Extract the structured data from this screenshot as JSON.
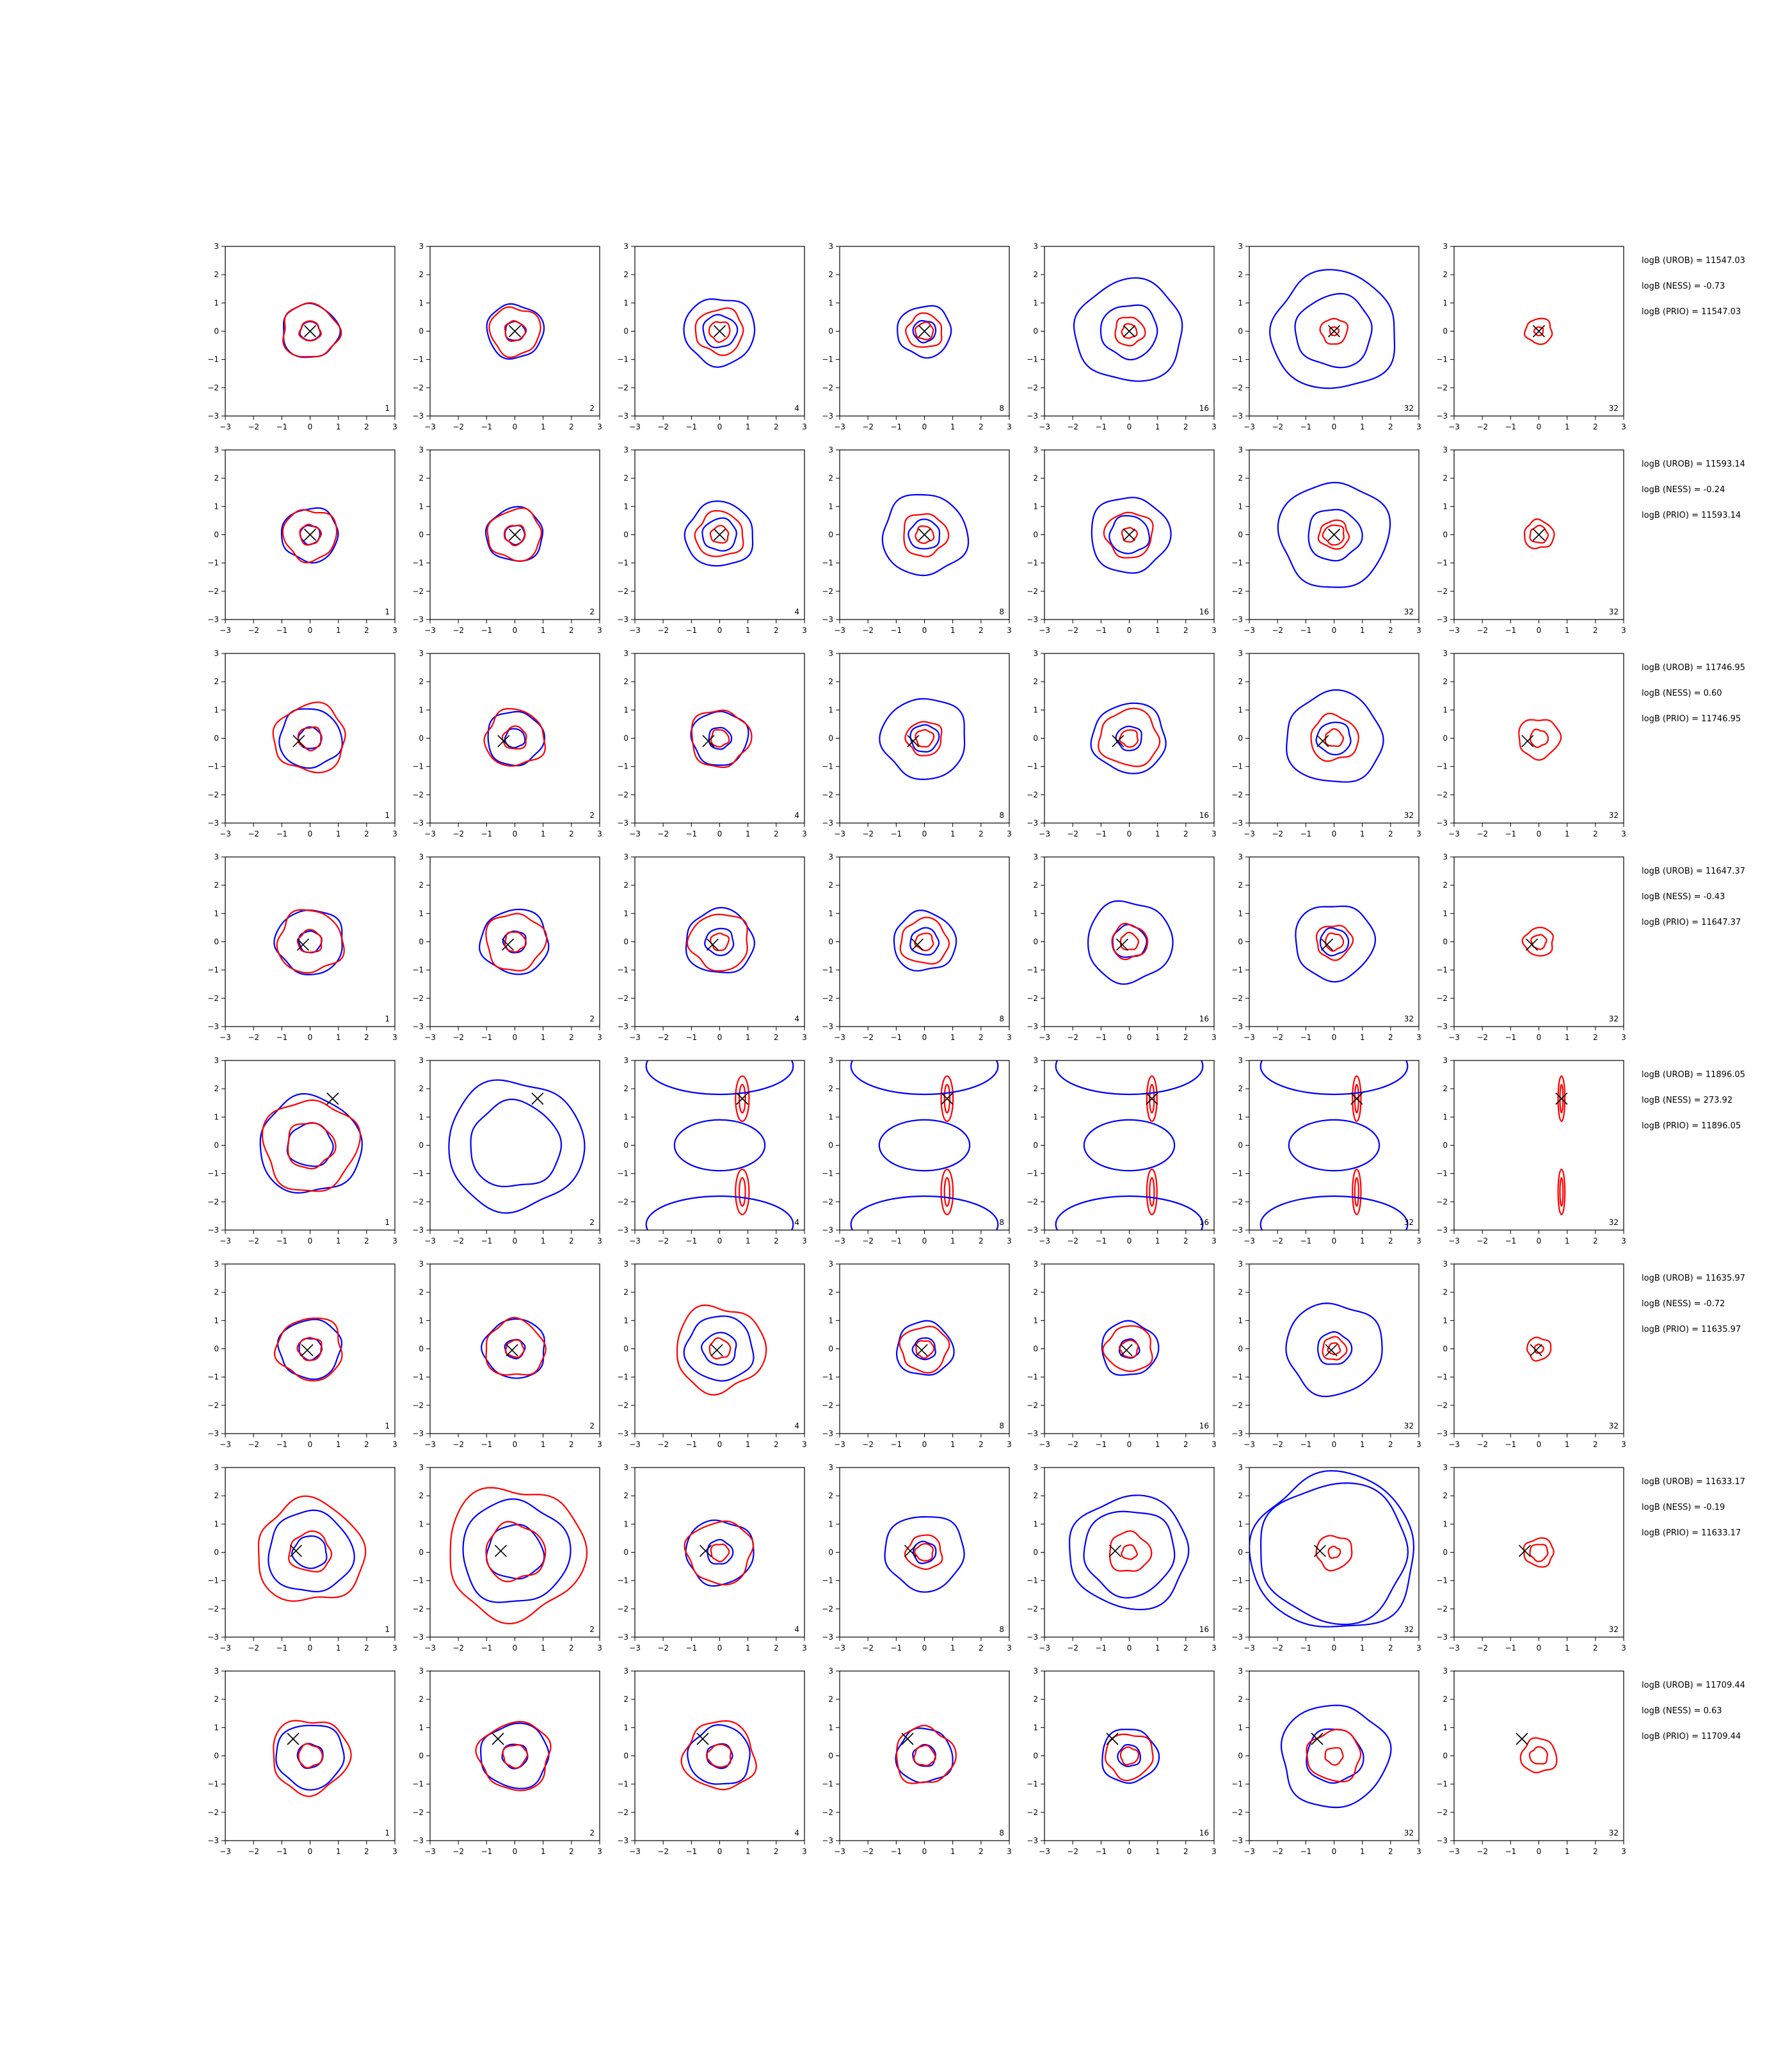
{
  "chart_data": {
    "type": "contour-grid",
    "rows": 8,
    "columns": 7,
    "panel_labels": [
      "1",
      "2",
      "4",
      "8",
      "16",
      "32",
      "32"
    ],
    "xlim": [
      -3,
      3
    ],
    "ylim": [
      -3,
      3
    ],
    "xticks": [
      "−3",
      "−2",
      "−1",
      "0",
      "1",
      "2",
      "3"
    ],
    "yticks": [
      "−3",
      "−2",
      "−1",
      "0",
      "1",
      "2",
      "3"
    ],
    "series_colors": {
      "blue": "#0000ff",
      "red": "#ff0000",
      "marker": "#000000"
    },
    "rows_data": [
      {
        "marker": [
          0,
          0
        ],
        "stats": [
          "logB (UROB) = 11547.03",
          "logB (NESS) = -0.73",
          "logB (PRIO) = 11547.03"
        ],
        "blue_r": [
          [
            0.35,
            1.0
          ],
          [
            0.35,
            1.0
          ],
          [
            0.6,
            1.25
          ],
          [
            0.4,
            0.95
          ],
          [
            1.0,
            1.9
          ],
          [
            1.35,
            2.2
          ],
          []
        ],
        "red_r": [
          [
            0.35,
            0.95
          ],
          [
            0.35,
            0.85
          ],
          [
            0.35,
            0.8
          ],
          [
            0.3,
            0.6
          ],
          [
            0.25,
            0.5
          ],
          [
            0.15,
            0.45
          ],
          [
            0.15,
            0.45
          ]
        ]
      },
      {
        "marker": [
          0,
          0
        ],
        "stats": [
          "logB (UROB) = 11593.14",
          "logB (NESS) = -0.24",
          "logB (PRIO) = 11593.14"
        ],
        "blue_r": [
          [
            0.35,
            1.0
          ],
          [
            0.35,
            1.0
          ],
          [
            0.6,
            1.2
          ],
          [
            0.55,
            1.5
          ],
          [
            0.7,
            1.4
          ],
          [
            0.95,
            1.95
          ],
          []
        ],
        "red_r": [
          [
            0.35,
            0.9
          ],
          [
            0.35,
            0.9
          ],
          [
            0.3,
            0.8
          ],
          [
            0.3,
            0.75
          ],
          [
            0.25,
            0.8
          ],
          [
            0.35,
            0.5
          ],
          [
            0.3,
            0.5
          ]
        ]
      },
      {
        "marker": [
          -0.4,
          -0.1
        ],
        "stats": [
          "logB (UROB) = 11746.95",
          "logB (NESS) = 0.60",
          "logB (PRIO) = 11746.95"
        ],
        "blue_r": [
          [
            0.4,
            1.1
          ],
          [
            0.35,
            1.0
          ],
          [
            0.4,
            1.0
          ],
          [
            0.5,
            1.5
          ],
          [
            0.45,
            1.3
          ],
          [
            0.6,
            1.7
          ],
          []
        ],
        "red_r": [
          [
            0.4,
            1.2
          ],
          [
            0.4,
            1.0
          ],
          [
            0.3,
            1.0
          ],
          [
            0.3,
            0.6
          ],
          [
            0.3,
            1.0
          ],
          [
            0.3,
            0.8
          ],
          [
            0.3,
            0.7
          ]
        ]
      },
      {
        "marker": [
          -0.25,
          -0.1
        ],
        "stats": [
          "logB (UROB) = 11647.37",
          "logB (NESS) = -0.43",
          "logB (PRIO) = 11647.37"
        ],
        "blue_r": [
          [
            0.4,
            1.2
          ],
          [
            0.4,
            1.2
          ],
          [
            0.5,
            1.2
          ],
          [
            0.5,
            1.1
          ],
          [
            0.6,
            1.5
          ],
          [
            0.5,
            1.4
          ],
          []
        ],
        "red_r": [
          [
            0.4,
            1.1
          ],
          [
            0.35,
            1.0
          ],
          [
            0.3,
            1.0
          ],
          [
            0.3,
            0.8
          ],
          [
            0.3,
            0.6
          ],
          [
            0.3,
            0.6
          ],
          [
            0.25,
            0.5
          ]
        ]
      },
      {
        "marker": [
          0.8,
          1.65
        ],
        "stats": [
          "logB (UROB) = 11896.05",
          "logB (NESS) = 273.92",
          "logB (PRIO) = 11896.05"
        ],
        "blue_r": [
          [
            0.8,
            1.8
          ],
          [
            1.6,
            2.4
          ],
          [],
          [],
          [],
          [],
          []
        ],
        "red_r": [
          [
            0.8,
            1.6
          ],
          [],
          [],
          [],
          [],
          [],
          []
        ]
      },
      {
        "marker": [
          -0.1,
          -0.05
        ],
        "stats": [
          "logB (UROB) = 11635.97",
          "logB (NESS) = -0.72",
          "logB (PRIO) = 11635.97"
        ],
        "blue_r": [
          [
            0.4,
            1.1
          ],
          [
            0.35,
            1.1
          ],
          [
            0.6,
            1.2
          ],
          [
            0.4,
            1.0
          ],
          [
            0.35,
            1.0
          ],
          [
            0.6,
            1.7
          ],
          []
        ],
        "red_r": [
          [
            0.4,
            1.1
          ],
          [
            0.3,
            1.0
          ],
          [
            0.35,
            1.5
          ],
          [
            0.3,
            0.8
          ],
          [
            0.3,
            0.8
          ],
          [
            0.2,
            0.4
          ],
          [
            0.15,
            0.4
          ]
        ]
      },
      {
        "marker": [
          -0.5,
          0.05
        ],
        "stats": [
          "logB (UROB) = 11633.17",
          "logB (NESS) = -0.19",
          "logB (PRIO) = 11633.17"
        ],
        "blue_r": [
          [
            0.6,
            1.5
          ],
          [
            1.0,
            1.9
          ],
          [
            0.45,
            1.2
          ],
          [
            0.4,
            1.4
          ],
          [
            1.6,
            2.1
          ],
          [
            2.6,
            2.9
          ],
          []
        ],
        "red_r": [
          [
            0.7,
            1.8
          ],
          [
            1.0,
            2.3
          ],
          [
            0.3,
            1.1
          ],
          [
            0.3,
            0.6
          ],
          [
            0.25,
            0.7
          ],
          [
            0.2,
            0.6
          ],
          [
            0.3,
            0.5
          ]
        ]
      },
      {
        "marker": [
          -0.6,
          0.6
        ],
        "stats": [
          "logB (UROB) = 11709.44",
          "logB (NESS) = 0.63",
          "logB (PRIO) = 11709.44"
        ],
        "blue_r": [
          [
            0.45,
            1.2
          ],
          [
            0.45,
            1.2
          ],
          [
            0.45,
            1.1
          ],
          [
            0.4,
            1.0
          ],
          [
            0.4,
            1.0
          ],
          [
            1.0,
            1.9
          ],
          []
        ],
        "red_r": [
          [
            0.4,
            1.3
          ],
          [
            0.4,
            1.2
          ],
          [
            0.4,
            1.2
          ],
          [
            0.35,
            1.0
          ],
          [
            0.3,
            0.8
          ],
          [
            0.3,
            0.9
          ],
          [
            0.3,
            0.6
          ]
        ]
      }
    ]
  }
}
